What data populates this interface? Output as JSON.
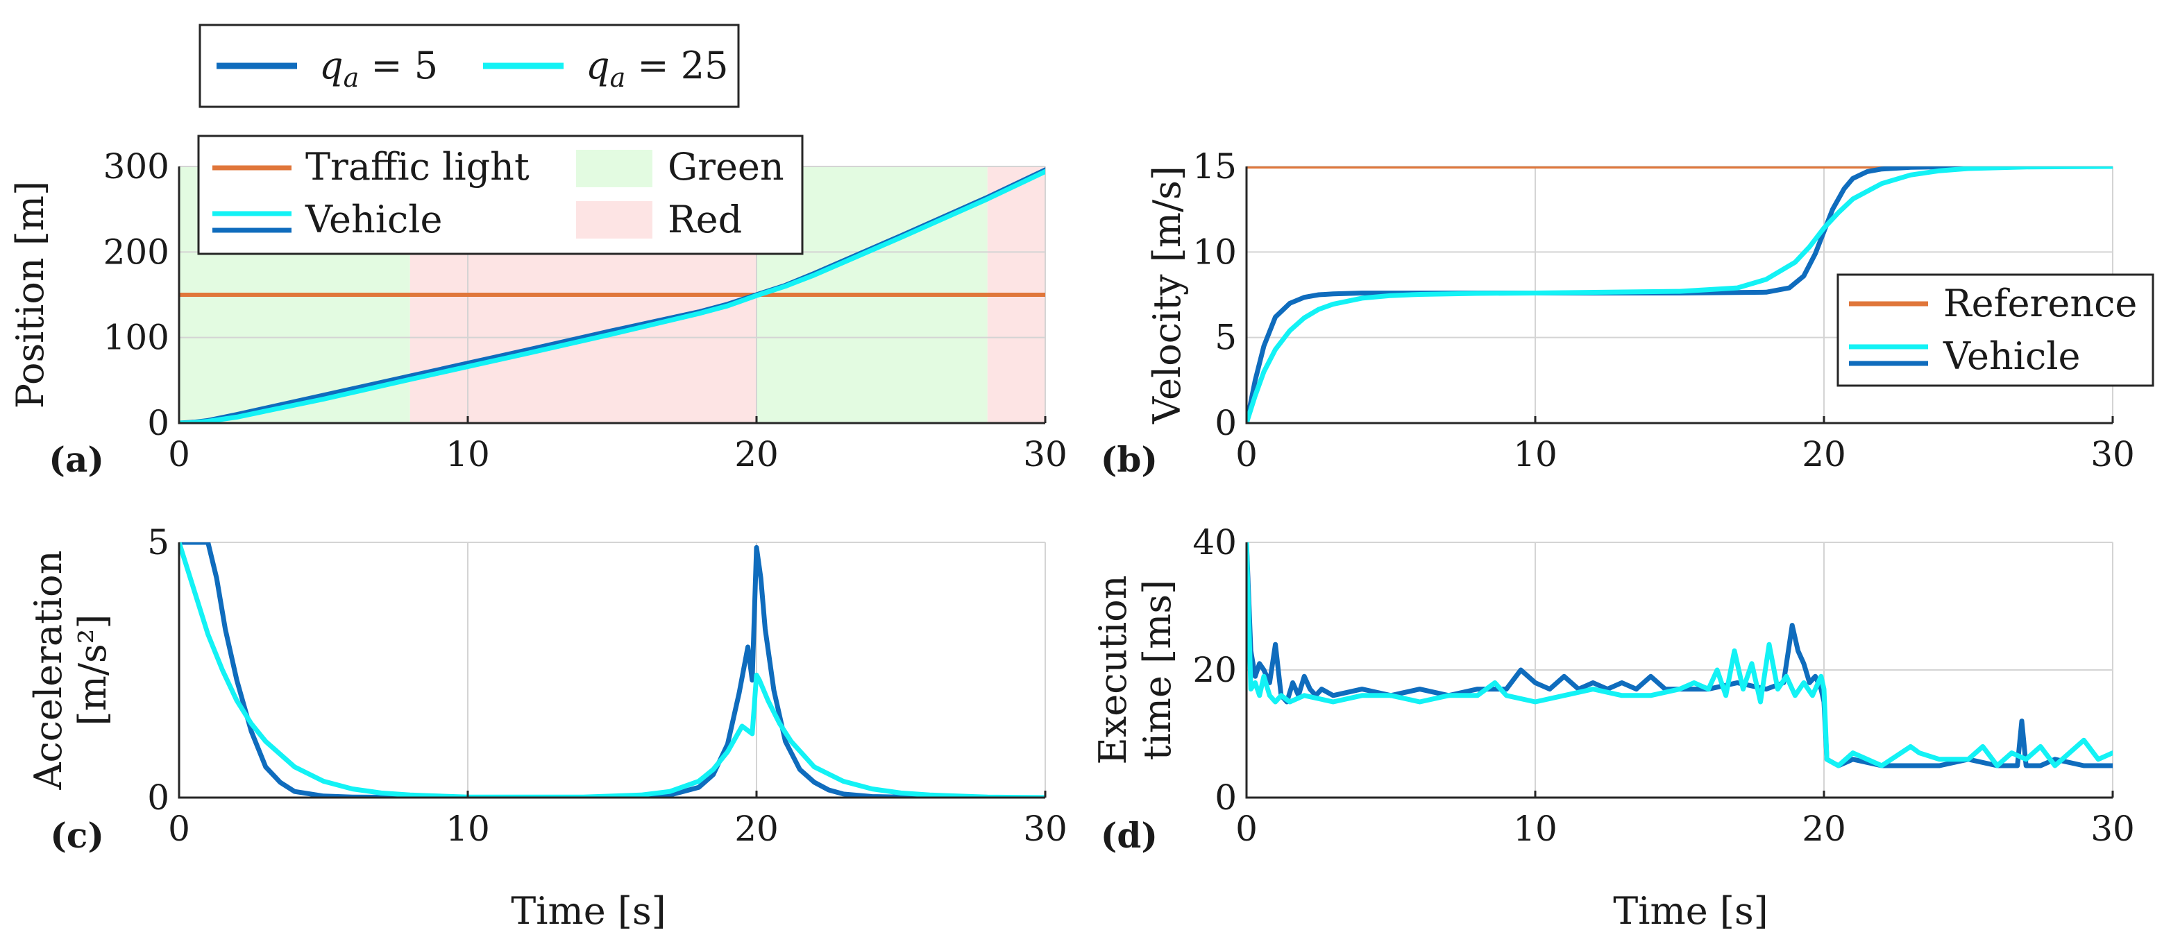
{
  "colors": {
    "q5": "#0f6cbd",
    "q25": "#13f2f5",
    "traffic_light": "#e0763a",
    "reference": "#e0763a",
    "green_band": "#e3fbe1",
    "red_band": "#fde4e4"
  },
  "top_legend": {
    "items": [
      {
        "symbol": "q",
        "sub": "a",
        "rest": " = 5",
        "color_key": "q5"
      },
      {
        "symbol": "q",
        "sub": "a",
        "rest": " = 25",
        "color_key": "q25"
      }
    ]
  },
  "chart_data": [
    {
      "id": "a",
      "type": "line",
      "panel_label": "(a)",
      "xlabel": "",
      "ylabel": "Position [m]",
      "xlim": [
        0,
        30
      ],
      "ylim": [
        0,
        300
      ],
      "xticks": [
        0,
        10,
        20,
        30
      ],
      "yticks": [
        0,
        100,
        200,
        300
      ],
      "grid": true,
      "legend_position": "top-left",
      "legend": {
        "lines": [
          {
            "label": "Traffic light",
            "color_key": "traffic_light"
          },
          {
            "label": "Vehicle",
            "color_key": "q25",
            "color_key2": "q5"
          }
        ],
        "patches": [
          {
            "label": "Green",
            "color_key": "green_band"
          },
          {
            "label": "Red",
            "color_key": "red_band"
          }
        ]
      },
      "bands": [
        {
          "from": 0,
          "to": 8,
          "kind": "green"
        },
        {
          "from": 8,
          "to": 20,
          "kind": "red"
        },
        {
          "from": 20,
          "to": 28,
          "kind": "green"
        },
        {
          "from": 28,
          "to": 30,
          "kind": "red"
        }
      ],
      "series": [
        {
          "name": "Traffic light",
          "color_key": "traffic_light",
          "x": [
            0,
            30
          ],
          "y": [
            150,
            150
          ]
        },
        {
          "name": "Vehicle",
          "color_key": "q5",
          "x": [
            0,
            0.5,
            1,
            2,
            3,
            5,
            8,
            10,
            12,
            15,
            18,
            19,
            20,
            21,
            22,
            25,
            28,
            30
          ],
          "y": [
            0,
            1,
            3,
            10,
            17.5,
            32.5,
            55,
            70,
            85,
            108,
            130,
            139,
            150,
            161,
            175,
            219,
            264,
            296
          ]
        },
        {
          "name": "Vehicle",
          "color_key": "q25",
          "x": [
            0,
            0.5,
            1,
            2,
            3,
            5,
            8,
            10,
            12,
            15,
            18,
            19,
            20,
            21,
            22,
            25,
            28,
            30
          ],
          "y": [
            0,
            0.5,
            2,
            7,
            14,
            28,
            51,
            66,
            81,
            104,
            128,
            137,
            149,
            160,
            173,
            217,
            262,
            294
          ]
        }
      ]
    },
    {
      "id": "b",
      "type": "line",
      "panel_label": "(b)",
      "xlabel": "",
      "ylabel": "Velocity [m/s]",
      "xlim": [
        0,
        30
      ],
      "ylim": [
        0,
        15
      ],
      "xticks": [
        0,
        10,
        20,
        30
      ],
      "yticks": [
        0,
        5,
        10,
        15
      ],
      "grid": true,
      "legend_position": "bottom-right",
      "legend": {
        "lines": [
          {
            "label": "Reference",
            "color_key": "reference"
          },
          {
            "label": "Vehicle",
            "color_key": "q25",
            "color_key2": "q5"
          }
        ]
      },
      "series": [
        {
          "name": "Reference",
          "color_key": "reference",
          "x": [
            0,
            30
          ],
          "y": [
            15,
            15
          ]
        },
        {
          "name": "Vehicle",
          "color_key": "q5",
          "x": [
            0,
            0.3,
            0.6,
            1,
            1.5,
            2,
            2.5,
            3,
            4,
            6,
            10,
            15,
            18,
            18.8,
            19.3,
            19.7,
            20,
            20.3,
            20.7,
            21,
            21.5,
            22,
            23,
            25,
            30
          ],
          "y": [
            0,
            2.5,
            4.5,
            6.2,
            7.0,
            7.35,
            7.5,
            7.55,
            7.6,
            7.6,
            7.6,
            7.6,
            7.65,
            7.9,
            8.6,
            9.9,
            11.2,
            12.5,
            13.7,
            14.3,
            14.7,
            14.85,
            14.95,
            15,
            15
          ]
        },
        {
          "name": "Vehicle",
          "color_key": "q25",
          "x": [
            0,
            0.3,
            0.6,
            1,
            1.5,
            2,
            2.5,
            3,
            4,
            5,
            6,
            8,
            10,
            15,
            17,
            18,
            19,
            19.5,
            20,
            20.5,
            21,
            22,
            23,
            24,
            25,
            27,
            30
          ],
          "y": [
            0,
            1.6,
            3.0,
            4.3,
            5.4,
            6.15,
            6.65,
            6.95,
            7.3,
            7.45,
            7.52,
            7.58,
            7.6,
            7.7,
            7.9,
            8.4,
            9.4,
            10.3,
            11.4,
            12.3,
            13.1,
            14.0,
            14.5,
            14.75,
            14.88,
            14.97,
            15
          ]
        }
      ]
    },
    {
      "id": "c",
      "type": "line",
      "panel_label": "(c)",
      "xlabel": "Time [s]",
      "ylabel_lines": [
        "Acceleration",
        "[m/s²]"
      ],
      "xlim": [
        0,
        30
      ],
      "ylim": [
        0,
        5
      ],
      "xticks": [
        0,
        10,
        20,
        30
      ],
      "yticks": [
        0,
        5
      ],
      "grid": true,
      "series": [
        {
          "name": "q_a = 5",
          "color_key": "q5",
          "x": [
            0,
            0.5,
            1,
            1.3,
            1.6,
            2,
            2.5,
            3,
            3.5,
            4,
            5,
            6,
            10,
            15,
            17,
            18,
            18.5,
            19,
            19.4,
            19.7,
            19.85,
            20,
            20.15,
            20.3,
            20.6,
            21,
            21.5,
            22,
            22.5,
            23,
            24,
            26,
            30
          ],
          "y": [
            5,
            5,
            5,
            4.3,
            3.3,
            2.3,
            1.3,
            0.6,
            0.3,
            0.12,
            0.03,
            0.01,
            0,
            0,
            0.05,
            0.2,
            0.45,
            1.05,
            2.05,
            2.95,
            2.3,
            4.9,
            4.3,
            3.3,
            2.1,
            1.1,
            0.55,
            0.3,
            0.15,
            0.07,
            0.02,
            0,
            0
          ]
        },
        {
          "name": "q_a = 25",
          "color_key": "q25",
          "x": [
            0,
            0.5,
            1,
            1.5,
            2,
            2.5,
            3,
            4,
            5,
            6,
            7,
            8,
            10,
            14,
            16,
            17,
            18,
            18.5,
            19,
            19.5,
            19.85,
            20,
            20.1,
            20.4,
            20.8,
            21.2,
            22,
            23,
            24,
            25,
            26,
            28,
            30
          ],
          "y": [
            5,
            4.1,
            3.2,
            2.5,
            1.9,
            1.45,
            1.1,
            0.6,
            0.32,
            0.17,
            0.09,
            0.05,
            0.01,
            0.01,
            0.05,
            0.12,
            0.32,
            0.55,
            0.9,
            1.4,
            1.25,
            2.4,
            2.3,
            1.9,
            1.45,
            1.1,
            0.6,
            0.32,
            0.17,
            0.09,
            0.05,
            0.01,
            0
          ]
        }
      ]
    },
    {
      "id": "d",
      "type": "line",
      "panel_label": "(d)",
      "xlabel": "Time [s]",
      "ylabel_lines": [
        "Execution",
        "time [ms]"
      ],
      "xlim": [
        0,
        30
      ],
      "ylim": [
        0,
        40
      ],
      "xticks": [
        0,
        10,
        20,
        30
      ],
      "yticks": [
        0,
        20,
        40
      ],
      "grid": true,
      "series": [
        {
          "name": "q_a = 5",
          "color_key": "q5",
          "x": [
            0,
            0.15,
            0.3,
            0.45,
            0.6,
            0.8,
            1.0,
            1.2,
            1.4,
            1.6,
            1.8,
            2.0,
            2.2,
            2.4,
            2.6,
            3,
            4,
            5,
            6,
            7,
            8,
            9,
            9.5,
            10,
            10.5,
            11,
            11.5,
            12,
            12.5,
            13,
            13.5,
            14,
            14.5,
            15,
            16,
            17,
            18,
            18.6,
            18.9,
            19.1,
            19.3,
            19.5,
            19.7,
            19.9,
            20.0,
            20.1,
            20.5,
            21,
            22,
            23,
            24,
            25,
            26,
            26.7,
            26.85,
            27,
            27.5,
            28,
            29,
            30
          ],
          "y": [
            40,
            23,
            19,
            21,
            20,
            18,
            24,
            16,
            15,
            18,
            16,
            19,
            17,
            16,
            17,
            16,
            17,
            16,
            17,
            16,
            17,
            17,
            20,
            18,
            17,
            19,
            17,
            18,
            17,
            18,
            17,
            19,
            17,
            17,
            17,
            18,
            17,
            18,
            27,
            23,
            21,
            18,
            19,
            17,
            15,
            6,
            5,
            6,
            5,
            5,
            5,
            6,
            5,
            5,
            12,
            5,
            5,
            6,
            5,
            5
          ]
        },
        {
          "name": "q_a = 25",
          "color_key": "q25",
          "x": [
            0,
            0.15,
            0.3,
            0.45,
            0.6,
            0.8,
            1.0,
            1.2,
            1.5,
            2,
            3,
            4,
            5,
            6,
            7,
            8,
            8.6,
            9,
            10,
            11,
            12,
            13,
            14,
            15,
            15.5,
            16,
            16.3,
            16.6,
            16.9,
            17.2,
            17.5,
            17.8,
            18.1,
            18.4,
            18.7,
            19,
            19.3,
            19.6,
            19.9,
            20.0,
            20.1,
            20.5,
            21,
            22,
            23,
            23.3,
            24,
            25,
            25.5,
            26,
            26.5,
            27,
            27.5,
            28,
            28.5,
            29,
            29.5,
            30
          ],
          "y": [
            40,
            17,
            18,
            16,
            19,
            16,
            15,
            16,
            15,
            16,
            15,
            16,
            16,
            15,
            16,
            16,
            18,
            16,
            15,
            16,
            17,
            16,
            16,
            17,
            18,
            17,
            20,
            16,
            23,
            17,
            21,
            15,
            24,
            17,
            19,
            16,
            18,
            16,
            19,
            17,
            6,
            5,
            7,
            5,
            8,
            7,
            6,
            6,
            8,
            5,
            7,
            6,
            8,
            5,
            7,
            9,
            6,
            7
          ]
        }
      ]
    }
  ]
}
